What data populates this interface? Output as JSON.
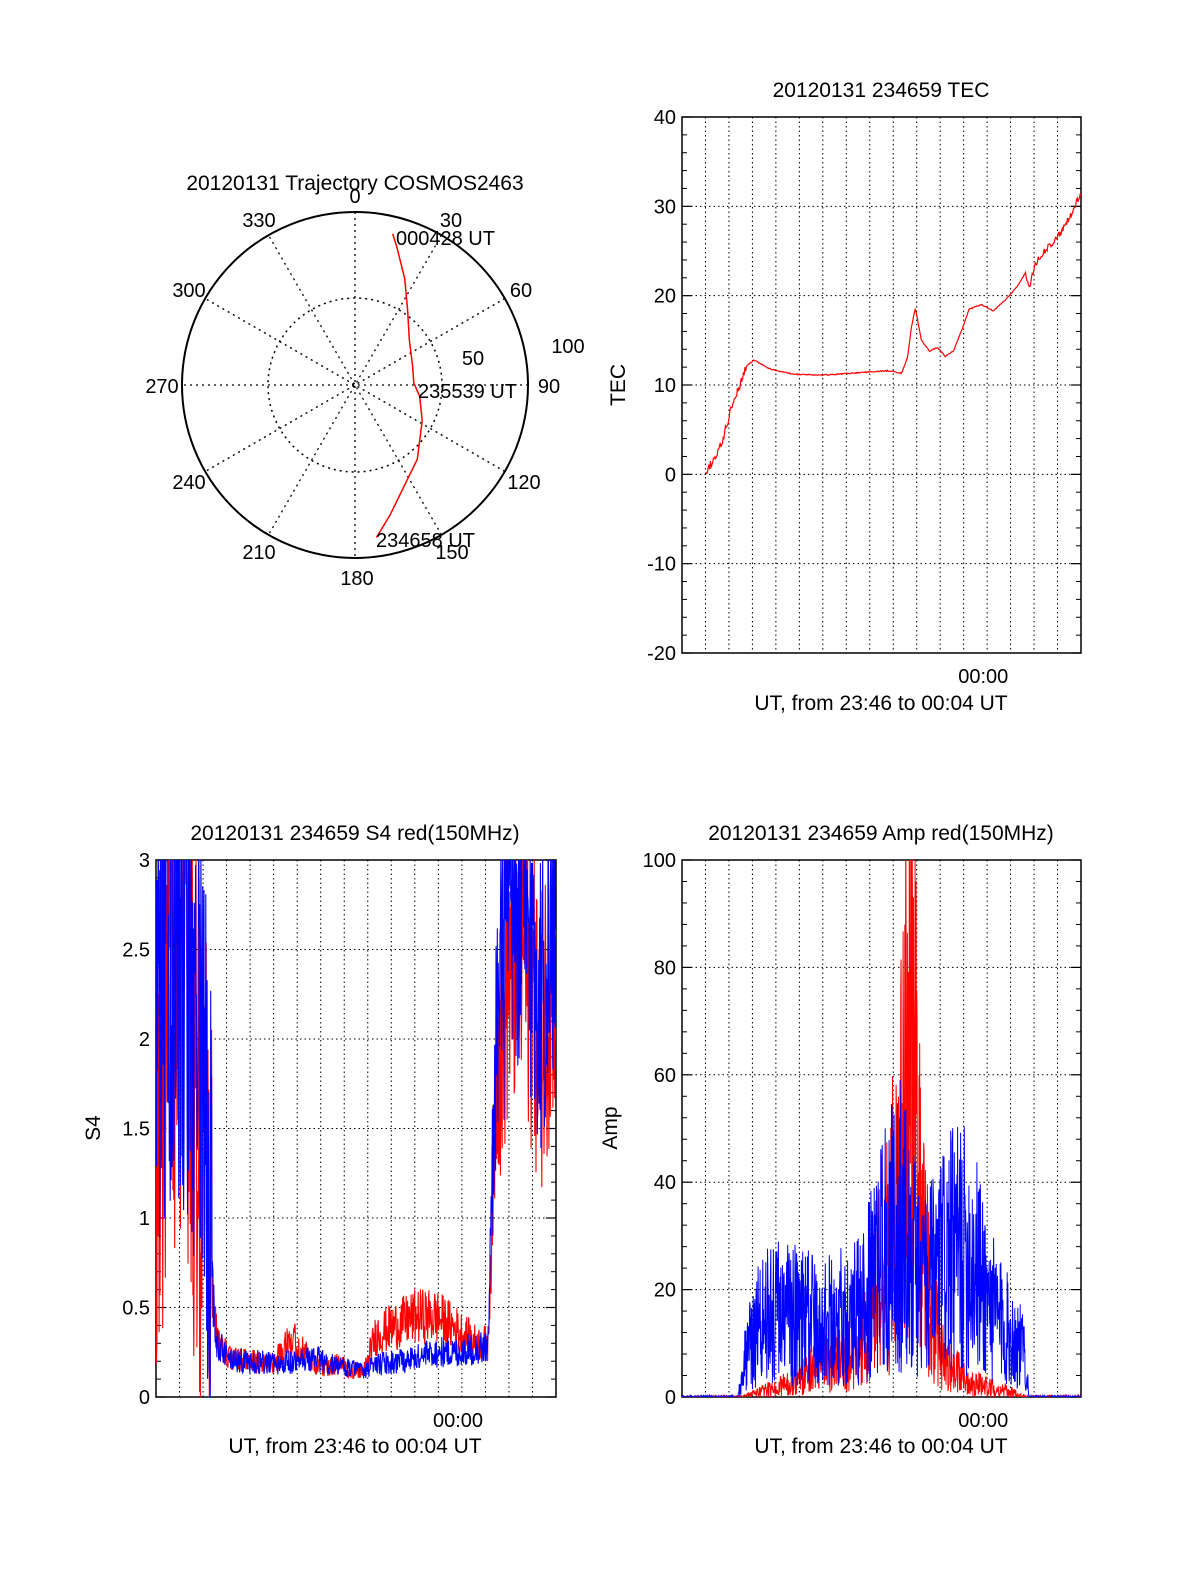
{
  "colors": {
    "red": "#ff0000",
    "blue": "#0000ff",
    "grid": "#000000"
  },
  "chart_data": [
    {
      "id": "trajectory",
      "type": "line",
      "projection": "polar",
      "title": "20120131 Trajectory COSMOS2463",
      "angle_labels": [
        "0",
        "30",
        "60",
        "90",
        "120",
        "150",
        "180",
        "210",
        "240",
        "270",
        "300",
        "330"
      ],
      "radius_labels": [
        "50",
        "100"
      ],
      "rmax": 100,
      "grid": true,
      "start_label": "234658 UT",
      "mid_label": "235539 UT",
      "end_label": "000428 UT",
      "series": [
        {
          "color": "red",
          "azimuth_deg": [
            172,
            165,
            140,
            118,
            100,
            88,
            72,
            50,
            35,
            25,
            17,
            14
          ],
          "zenith_deg": [
            89,
            78,
            56,
            44,
            38,
            34,
            35,
            41,
            53,
            68,
            83,
            90
          ]
        }
      ]
    },
    {
      "id": "tec",
      "type": "line",
      "title": "20120131 234659 TEC",
      "xlabel": "UT, from 23:46 to 00:04 UT",
      "ylabel": "TEC",
      "xlim": [
        0,
        1
      ],
      "ylim": [
        -20,
        40
      ],
      "yticks": [
        "-20",
        "-10",
        "0",
        "10",
        "20",
        "30",
        "40"
      ],
      "xticks": [
        {
          "x": 0.755,
          "label": "00:00"
        }
      ],
      "grid": true,
      "series": [
        {
          "color": "red",
          "x": [
            0.06,
            0.07,
            0.085,
            0.1,
            0.115,
            0.13,
            0.145,
            0.16,
            0.18,
            0.22,
            0.28,
            0.35,
            0.42,
            0.48,
            0.52,
            0.55,
            0.565,
            0.575,
            0.585,
            0.6,
            0.62,
            0.64,
            0.66,
            0.68,
            0.7,
            0.72,
            0.75,
            0.78,
            0.81,
            0.84,
            0.86,
            0.87,
            0.885,
            0.9,
            0.92,
            0.95,
            0.98,
            1.0
          ],
          "y": [
            -0.2,
            1.0,
            2.0,
            3.5,
            6.0,
            8.5,
            10.0,
            12.0,
            12.8,
            11.8,
            11.2,
            11.1,
            11.3,
            11.5,
            11.6,
            11.3,
            13.0,
            16.5,
            18.6,
            15.0,
            13.8,
            14.2,
            13.2,
            13.8,
            16.0,
            18.5,
            19.0,
            18.3,
            19.5,
            21.0,
            22.5,
            20.8,
            23.5,
            24.5,
            25.5,
            27.0,
            29.5,
            31.5
          ]
        }
      ]
    },
    {
      "id": "s4",
      "type": "line",
      "title": "20120131 234659 S4 red(150MHz)",
      "xlabel": "UT, from 23:46 to 00:04 UT",
      "ylabel": "S4",
      "xlim": [
        0,
        1
      ],
      "ylim": [
        0,
        3
      ],
      "yticks": [
        "0",
        "0.5",
        "1",
        "1.5",
        "2",
        "2.5",
        "3"
      ],
      "xticks": [
        {
          "x": 0.755,
          "label": "00:00"
        }
      ],
      "grid": true,
      "series": [
        {
          "color": "red",
          "x": [
            0.0,
            0.04,
            0.09,
            0.13,
            0.15,
            0.18,
            0.22,
            0.3,
            0.33,
            0.4,
            0.45,
            0.5,
            0.52,
            0.55,
            0.6,
            0.65,
            0.7,
            0.75,
            0.8,
            0.83,
            0.85,
            0.88,
            0.92,
            0.96,
            1.0
          ],
          "y": [
            1.5,
            2.3,
            1.8,
            1.0,
            0.35,
            0.22,
            0.2,
            0.19,
            0.35,
            0.17,
            0.18,
            0.15,
            0.14,
            0.35,
            0.4,
            0.45,
            0.45,
            0.38,
            0.3,
            0.3,
            1.8,
            2.4,
            2.5,
            2.0,
            2.5
          ]
        },
        {
          "color": "blue",
          "x": [
            0.0,
            0.04,
            0.09,
            0.13,
            0.15,
            0.18,
            0.22,
            0.3,
            0.35,
            0.4,
            0.45,
            0.5,
            0.52,
            0.55,
            0.6,
            0.65,
            0.7,
            0.75,
            0.8,
            0.83,
            0.85,
            0.88,
            0.92,
            0.96,
            1.0
          ],
          "y": [
            2.2,
            2.6,
            2.4,
            1.2,
            0.3,
            0.22,
            0.2,
            0.19,
            0.2,
            0.21,
            0.18,
            0.15,
            0.14,
            0.18,
            0.2,
            0.22,
            0.25,
            0.25,
            0.27,
            0.28,
            2.0,
            2.6,
            2.7,
            2.2,
            2.6
          ]
        }
      ]
    },
    {
      "id": "amp",
      "type": "line",
      "title": "20120131 234659 Amp red(150MHz)",
      "xlabel": "UT, from 23:46 to 00:04 UT",
      "ylabel": "Amp",
      "xlim": [
        0,
        1
      ],
      "ylim": [
        0,
        100
      ],
      "yticks": [
        "0",
        "20",
        "40",
        "60",
        "80",
        "100"
      ],
      "xticks": [
        {
          "x": 0.755,
          "label": "00:00"
        }
      ],
      "grid": true,
      "series": [
        {
          "color": "red",
          "x": [
            0.0,
            0.1,
            0.15,
            0.2,
            0.25,
            0.3,
            0.35,
            0.4,
            0.45,
            0.48,
            0.52,
            0.55,
            0.56,
            0.57,
            0.59,
            0.6,
            0.62,
            0.65,
            0.68,
            0.72,
            0.76,
            0.82,
            0.86,
            0.9,
            1.0
          ],
          "y": [
            0,
            0,
            0,
            1,
            2,
            4,
            6,
            7,
            9,
            18,
            28,
            45,
            62,
            70,
            50,
            35,
            18,
            8,
            5,
            3,
            2,
            1,
            0,
            0,
            0
          ]
        },
        {
          "color": "blue",
          "x": [
            0.0,
            0.1,
            0.14,
            0.16,
            0.2,
            0.25,
            0.3,
            0.35,
            0.4,
            0.45,
            0.48,
            0.52,
            0.55,
            0.58,
            0.6,
            0.63,
            0.66,
            0.7,
            0.74,
            0.78,
            0.82,
            0.86,
            0.87,
            0.9,
            1.0
          ],
          "y": [
            0,
            0,
            0,
            8,
            15,
            16,
            15,
            14,
            15,
            16,
            22,
            30,
            32,
            26,
            20,
            22,
            26,
            28,
            24,
            16,
            12,
            8,
            0,
            0,
            0
          ]
        }
      ]
    }
  ]
}
